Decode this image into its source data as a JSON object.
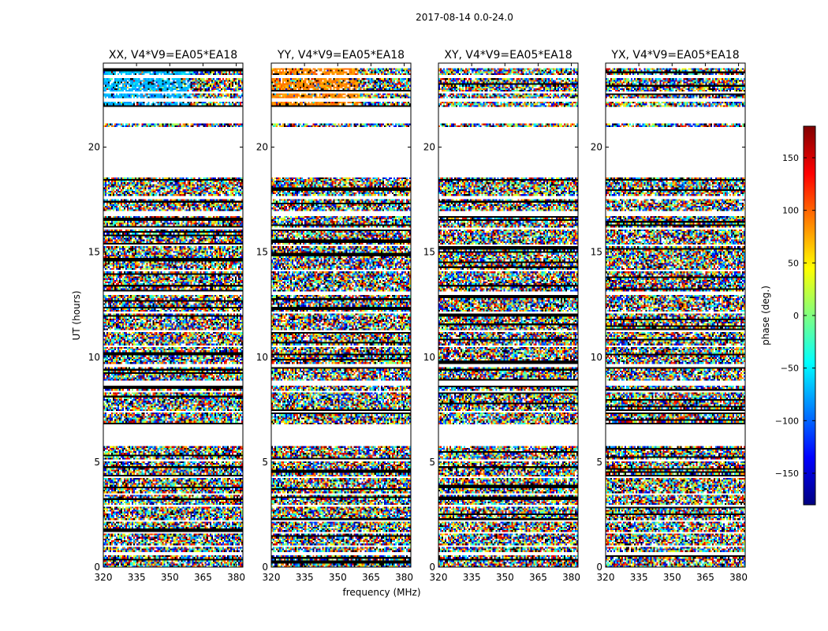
{
  "chart_data": {
    "type": "heatmap",
    "suptitle": "2017-08-14 0.0-24.0",
    "xlabel": "frequency (MHz)",
    "ylabel": "UT (hours)",
    "xlim": [
      320,
      383
    ],
    "ylim": [
      0,
      24
    ],
    "xticks": [
      320,
      335,
      350,
      365,
      380
    ],
    "yticks": [
      0,
      5,
      10,
      15,
      20
    ],
    "colorbar": {
      "label": "phase (deg.)",
      "range": [
        -180,
        180
      ],
      "ticks": [
        -150,
        -100,
        -50,
        0,
        50,
        100,
        150
      ],
      "colormap": "jet"
    },
    "panels": [
      {
        "title": "XX, V4*V9=EA05*EA18",
        "pattern": "phase_noise",
        "dominant_phase_deg": -70
      },
      {
        "title": "YY, V4*V9=EA05*EA18",
        "pattern": "phase_noise",
        "dominant_phase_deg": 85
      },
      {
        "title": "XY, V4*V9=EA05*EA18",
        "pattern": "phase_noise",
        "dominant_phase_deg": null
      },
      {
        "title": "YX, V4*V9=EA05*EA18",
        "pattern": "phase_noise",
        "dominant_phase_deg": null
      }
    ],
    "data_gaps_ut_hours": [
      [
        0.55,
        0.7
      ],
      [
        0.95,
        1.05
      ],
      [
        1.6,
        1.7
      ],
      [
        2.15,
        2.25
      ],
      [
        2.9,
        3.0
      ],
      [
        3.45,
        3.55
      ],
      [
        4.25,
        4.35
      ],
      [
        5.05,
        5.15
      ],
      [
        5.75,
        6.0
      ],
      [
        6.0,
        6.8
      ],
      [
        7.35,
        7.45
      ],
      [
        8.3,
        8.4
      ],
      [
        8.65,
        8.85
      ],
      [
        9.55,
        9.65
      ],
      [
        10.5,
        10.6
      ],
      [
        11.2,
        11.3
      ],
      [
        12.05,
        12.15
      ],
      [
        13.0,
        13.1
      ],
      [
        14.1,
        14.2
      ],
      [
        15.25,
        15.35
      ],
      [
        16.05,
        16.15
      ],
      [
        16.75,
        16.95
      ],
      [
        17.55,
        17.65
      ],
      [
        18.6,
        21.0
      ],
      [
        21.15,
        21.9
      ],
      [
        22.15,
        22.3
      ],
      [
        22.55,
        22.65
      ],
      [
        23.3,
        23.45
      ],
      [
        23.8,
        24.0
      ]
    ]
  }
}
